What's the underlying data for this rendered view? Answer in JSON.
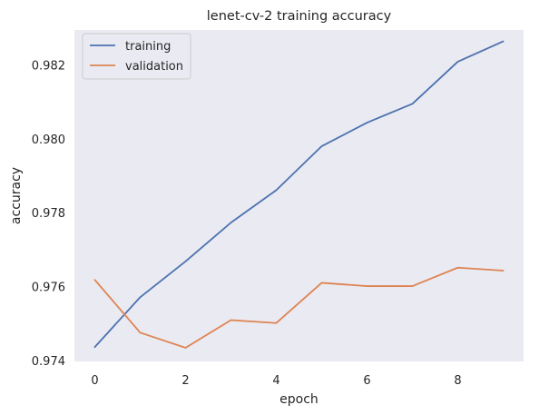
{
  "chart_data": {
    "type": "line",
    "title": "lenet-cv-2 training accuracy",
    "xlabel": "epoch",
    "ylabel": "accuracy",
    "x": [
      0,
      1,
      2,
      3,
      4,
      5,
      6,
      7,
      8,
      9
    ],
    "xlim": [
      -0.45,
      9.45
    ],
    "ylim": [
      0.97397,
      0.98295
    ],
    "x_ticks": [
      "0",
      "2",
      "4",
      "6",
      "8"
    ],
    "y_ticks": [
      "0.974",
      "0.976",
      "0.978",
      "0.980",
      "0.982"
    ],
    "grid": false,
    "legend_position": "top-left",
    "background": "#eaeaf2",
    "series": [
      {
        "name": "training",
        "color": "#4c72b0",
        "values": [
          0.97436,
          0.97571,
          0.97668,
          0.97773,
          0.97861,
          0.9798,
          0.98044,
          0.98095,
          0.98209,
          0.98264
        ]
      },
      {
        "name": "validation",
        "color": "#dd8452",
        "values": [
          0.97618,
          0.97475,
          0.97434,
          0.97509,
          0.97501,
          0.9761,
          0.97601,
          0.97601,
          0.97651,
          0.97643
        ]
      }
    ]
  }
}
